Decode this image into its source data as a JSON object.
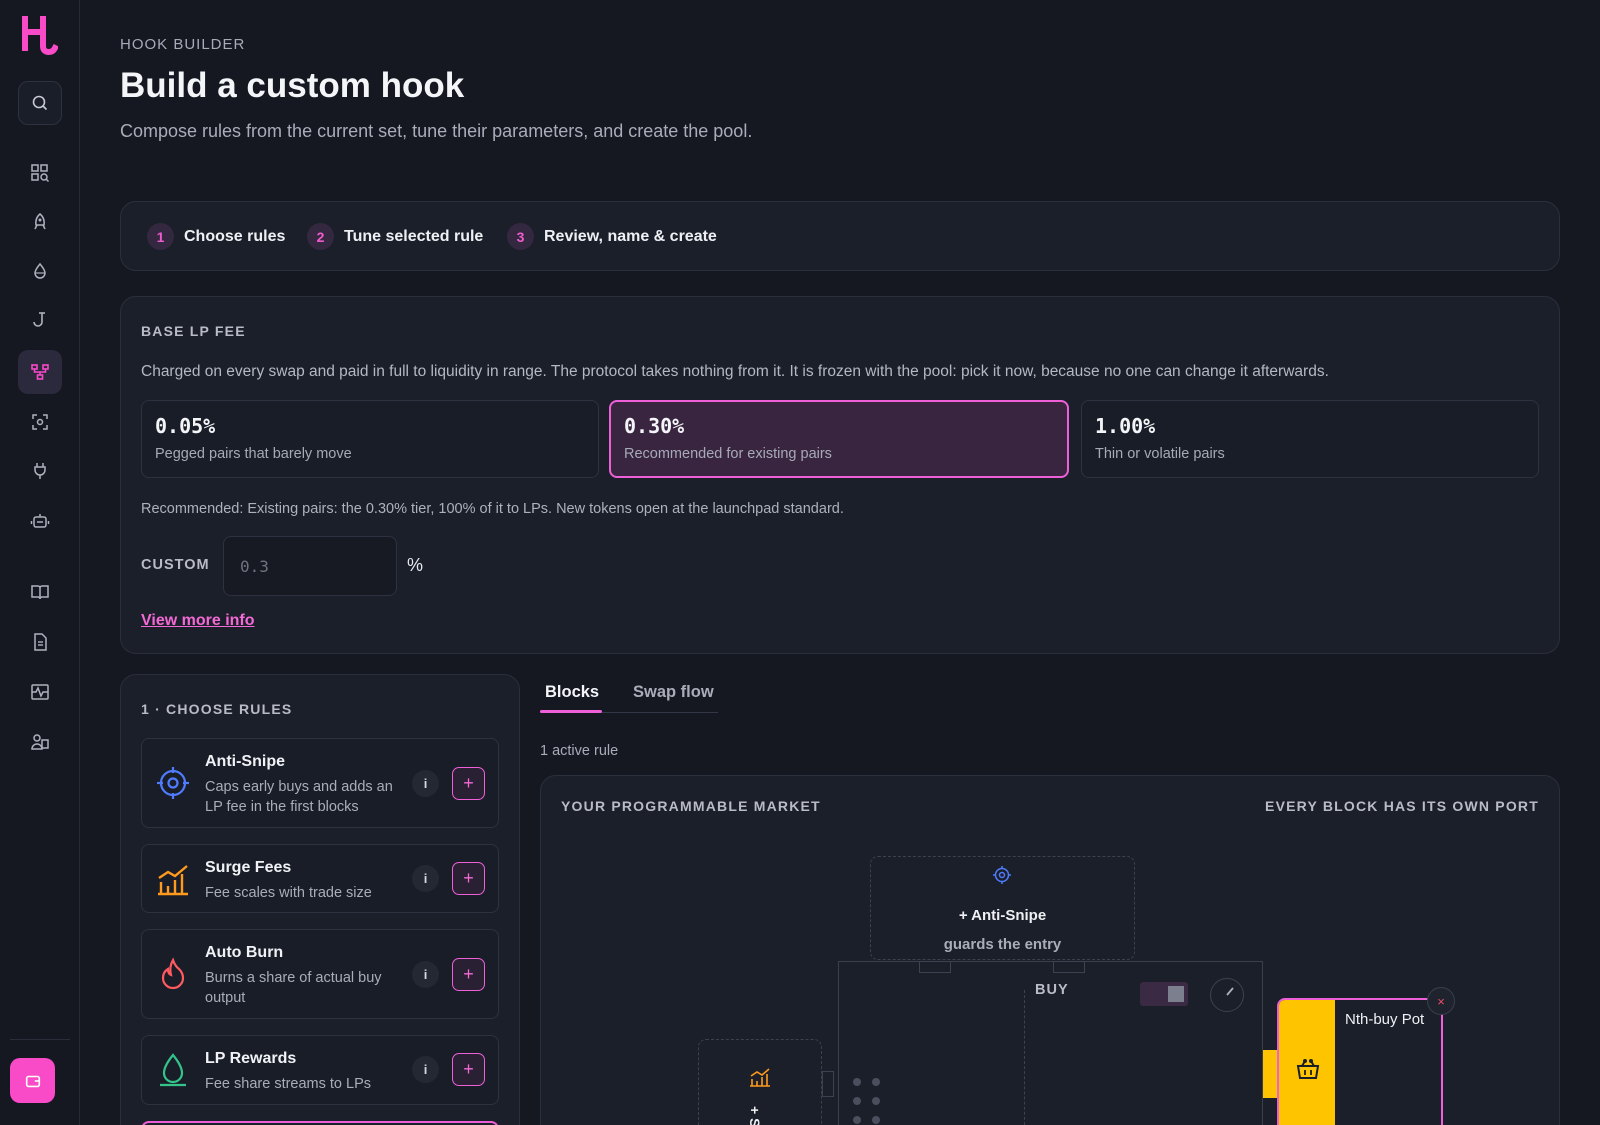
{
  "sidebar": {
    "logo": "hook-logo",
    "items": [
      "explore-icon",
      "rocket-icon",
      "droplet-icon",
      "hook-icon",
      "hook-builder-icon",
      "scan-icon",
      "plug-icon",
      "robot-icon",
      "book-icon",
      "document-icon",
      "activity-icon",
      "users-icon"
    ],
    "active_item": "hook-builder-icon",
    "accent": "#f94ac8"
  },
  "header": {
    "eyebrow": "HOOK BUILDER",
    "title": "Build a custom hook",
    "subtitle": "Compose rules from the current set, tune their parameters, and create the pool."
  },
  "steps": [
    {
      "num": "1",
      "label": "Choose rules"
    },
    {
      "num": "2",
      "label": "Tune selected rule"
    },
    {
      "num": "3",
      "label": "Review, name & create"
    }
  ],
  "base_fee": {
    "title": "BASE LP FEE",
    "description": "Charged on every swap and paid in full to liquidity in range. The protocol takes nothing from it. It is frozen with the pool: pick it now, because no one can change it afterwards.",
    "tiers": [
      {
        "value": "0.05%",
        "note": "Pegged pairs that barely move"
      },
      {
        "value": "0.30%",
        "note": "Recommended for existing pairs"
      },
      {
        "value": "1.00%",
        "note": "Thin or volatile pairs"
      }
    ],
    "selected_tier": "0.30%",
    "recommendation": "Recommended: Existing pairs: the 0.30% tier, 100% of it to LPs. New tokens open at the launchpad standard.",
    "custom_label": "CUSTOM",
    "custom_placeholder": "0.3",
    "custom_unit": "%",
    "more_link": "View more info"
  },
  "rules": {
    "title": "1 · CHOOSE RULES",
    "items": [
      {
        "name": "Anti-Snipe",
        "desc": "Caps early buys and adds an LP fee in the first blocks",
        "icon": "crosshair-icon",
        "color": "#4f7cff",
        "info": "i",
        "add": "+"
      },
      {
        "name": "Surge Fees",
        "desc": "Fee scales with trade size",
        "icon": "chart-icon",
        "color": "#ff9a1f",
        "info": "i",
        "add": "+"
      },
      {
        "name": "Auto Burn",
        "desc": "Burns a share of actual buy output",
        "icon": "flame-icon",
        "color": "#ff5a5f",
        "info": "i",
        "add": "+"
      },
      {
        "name": "LP Rewards",
        "desc": "Fee share streams to LPs",
        "icon": "droplet-icon",
        "color": "#33c48a",
        "info": "i",
        "add": "+"
      }
    ]
  },
  "tabs": [
    {
      "label": "Blocks",
      "active": true
    },
    {
      "label": "Swap flow",
      "active": false
    }
  ],
  "active_count": "1 active rule",
  "canvas": {
    "title": "YOUR PROGRAMMABLE MARKET",
    "note": "EVERY BLOCK HAS ITS OWN PORT",
    "anti_snipe_block": {
      "label": "+ Anti-Snipe",
      "sub": "guards the entry"
    },
    "surge_block": {
      "label": "+ S"
    },
    "engine_label": "BUY",
    "pot": {
      "name": "Nth-buy Pot",
      "close": "×",
      "color": "#ffc400"
    }
  }
}
